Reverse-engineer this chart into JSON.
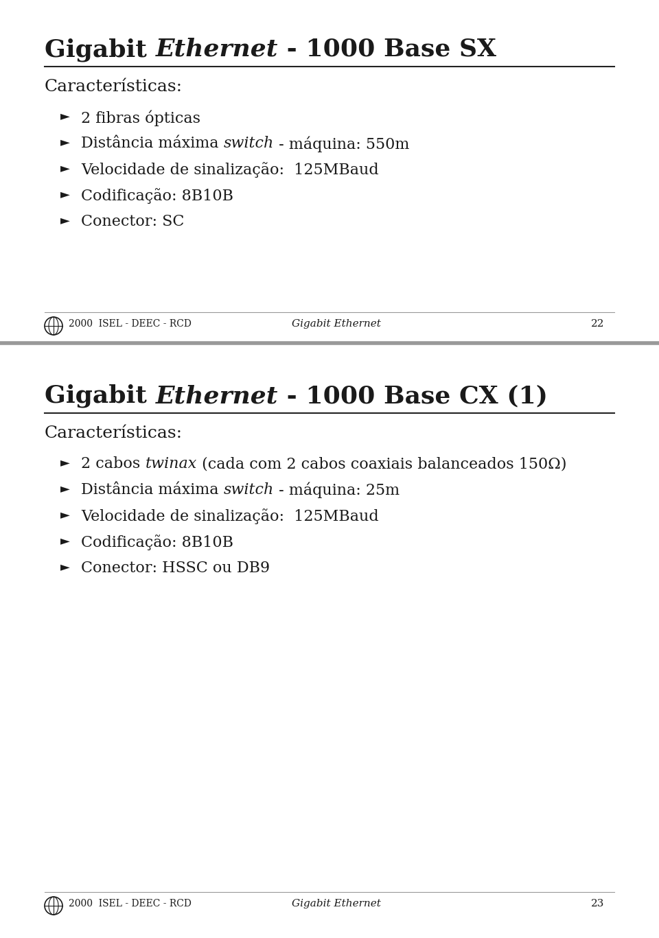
{
  "slide1_title_parts": [
    {
      "text": "Gigabit ",
      "bold": true,
      "italic": false
    },
    {
      "text": "Ethernet",
      "bold": true,
      "italic": true
    },
    {
      "text": " - 1000 Base SX",
      "bold": true,
      "italic": false
    }
  ],
  "slide1_section": "Características:",
  "slide1_bullets": [
    [
      {
        "text": "2 fibras ópticas",
        "italic": false
      }
    ],
    [
      {
        "text": "Distância máxima ",
        "italic": false
      },
      {
        "text": "switch",
        "italic": true
      },
      {
        "text": " - máquina: 550m",
        "italic": false
      }
    ],
    [
      {
        "text": "Velocidade de sinalização:  125MBaud",
        "italic": false
      }
    ],
    [
      {
        "text": "Codificação: 8B10B",
        "italic": false
      }
    ],
    [
      {
        "text": "Conector: SC",
        "italic": false
      }
    ]
  ],
  "slide2_title_parts": [
    {
      "text": "Gigabit ",
      "bold": true,
      "italic": false
    },
    {
      "text": "Ethernet",
      "bold": true,
      "italic": true
    },
    {
      "text": " - 1000 Base CX (1)",
      "bold": true,
      "italic": false
    }
  ],
  "slide2_section": "Características:",
  "slide2_bullets": [
    [
      {
        "text": "2 cabos ",
        "italic": false
      },
      {
        "text": "twinax",
        "italic": true
      },
      {
        "text": " (cada com 2 cabos coaxiais balanceados 150Ω)",
        "italic": false
      }
    ],
    [
      {
        "text": "Distância máxima ",
        "italic": false
      },
      {
        "text": "switch",
        "italic": true
      },
      {
        "text": " - máquina: 25m",
        "italic": false
      }
    ],
    [
      {
        "text": "Velocidade de sinalização:  125MBaud",
        "italic": false
      }
    ],
    [
      {
        "text": "Codificação: 8B10B",
        "italic": false
      }
    ],
    [
      {
        "text": "Conector: HSSC ou DB9",
        "italic": false
      }
    ]
  ],
  "footer_left": "2000  ISEL - DEEC - RCD",
  "footer_center1": "Gigabit Ethernet",
  "footer_page1": "22",
  "footer_center2": "Gigabit Ethernet",
  "footer_page2": "23",
  "bg_color": "#ffffff",
  "text_color": "#1a1a1a",
  "title_fontsize": 26,
  "section_fontsize": 18,
  "bullet_fontsize": 16,
  "footer_fontsize": 10,
  "divider_color": "#222222",
  "slide_divider_color": "#999999",
  "bullet_symbol": "►"
}
